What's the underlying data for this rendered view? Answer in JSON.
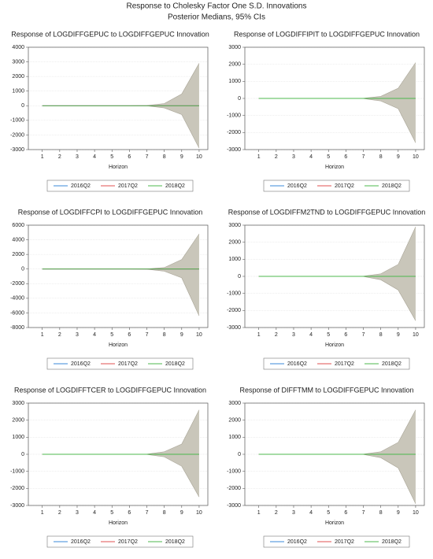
{
  "title": "Response to Cholesky Factor One S.D. Innovations",
  "subtitle": "Posterior Medians, 95% CIs",
  "chart_data": [
    {
      "type": "line",
      "title": "Response of LOGDIFFGEPUC to LOGDIFFGEPUC Innovation",
      "xlabel": "Horizon",
      "categories": [
        "1",
        "2",
        "3",
        "4",
        "5",
        "6",
        "7",
        "8",
        "9",
        "10"
      ],
      "ylim": [
        -3000,
        4000
      ],
      "yticks": [
        -3000,
        -2000,
        -1000,
        0,
        1000,
        2000,
        3000,
        4000
      ],
      "band": {
        "color": "#c9c6ba",
        "upper": [
          0,
          0,
          0,
          0,
          0,
          0,
          10,
          150,
          800,
          2900
        ],
        "lower": [
          0,
          0,
          0,
          0,
          0,
          0,
          -10,
          -150,
          -600,
          -2900
        ]
      },
      "series": [
        {
          "name": "2016Q2",
          "color": "#3b8ad9",
          "values": [
            0,
            0,
            0,
            0,
            0,
            0,
            0,
            0,
            0,
            0
          ]
        },
        {
          "name": "2017Q2",
          "color": "#e05050",
          "values": [
            0,
            0,
            0,
            0,
            0,
            0,
            0,
            0,
            0,
            0
          ]
        },
        {
          "name": "2018Q2",
          "color": "#4cb84c",
          "values": [
            0,
            0,
            0,
            0,
            0,
            0,
            0,
            0,
            0,
            0
          ]
        }
      ]
    },
    {
      "type": "line",
      "title": "Response of LOGDIFFIPIT to LOGDIFFGEPUC Innovation",
      "xlabel": "Horizon",
      "categories": [
        "1",
        "2",
        "3",
        "4",
        "5",
        "6",
        "7",
        "8",
        "9",
        "10"
      ],
      "ylim": [
        -3000,
        3000
      ],
      "yticks": [
        -3000,
        -2000,
        -1000,
        0,
        1000,
        2000,
        3000
      ],
      "band": {
        "color": "#c9c6ba",
        "upper": [
          0,
          0,
          0,
          0,
          0,
          0,
          10,
          120,
          600,
          2100
        ],
        "lower": [
          0,
          0,
          0,
          0,
          0,
          0,
          -10,
          -150,
          -600,
          -2600
        ]
      },
      "series": [
        {
          "name": "2016Q2",
          "color": "#3b8ad9",
          "values": [
            0,
            0,
            0,
            0,
            0,
            0,
            0,
            0,
            0,
            0
          ]
        },
        {
          "name": "2017Q2",
          "color": "#e05050",
          "values": [
            0,
            0,
            0,
            0,
            0,
            0,
            0,
            0,
            0,
            0
          ]
        },
        {
          "name": "2018Q2",
          "color": "#4cb84c",
          "values": [
            0,
            0,
            0,
            0,
            0,
            0,
            0,
            0,
            0,
            0
          ]
        }
      ]
    },
    {
      "type": "line",
      "title": "Response of LOGDIFFCPI to LOGDIFFGEPUC Innovation",
      "xlabel": "Horizon",
      "categories": [
        "1",
        "2",
        "3",
        "4",
        "5",
        "6",
        "7",
        "8",
        "9",
        "10"
      ],
      "ylim": [
        -8000,
        6000
      ],
      "yticks": [
        -8000,
        -6000,
        -4000,
        -2000,
        0,
        2000,
        4000,
        6000
      ],
      "band": {
        "color": "#c9c6ba",
        "upper": [
          0,
          0,
          0,
          0,
          0,
          0,
          20,
          200,
          1300,
          4800
        ],
        "lower": [
          0,
          0,
          0,
          0,
          0,
          0,
          -20,
          -300,
          -1200,
          -6400
        ]
      },
      "series": [
        {
          "name": "2016Q2",
          "color": "#3b8ad9",
          "values": [
            0,
            0,
            0,
            0,
            0,
            0,
            0,
            0,
            0,
            0
          ]
        },
        {
          "name": "2017Q2",
          "color": "#e05050",
          "values": [
            0,
            0,
            0,
            0,
            0,
            0,
            0,
            0,
            0,
            0
          ]
        },
        {
          "name": "2018Q2",
          "color": "#4cb84c",
          "values": [
            0,
            0,
            0,
            0,
            0,
            0,
            0,
            0,
            0,
            0
          ]
        }
      ]
    },
    {
      "type": "line",
      "title": "Response of LOGDIFFM2TND to LOGDIFFGEPUC Innovation",
      "xlabel": "Horizon",
      "categories": [
        "1",
        "2",
        "3",
        "4",
        "5",
        "6",
        "7",
        "8",
        "9",
        "10"
      ],
      "ylim": [
        -3000,
        3000
      ],
      "yticks": [
        -3000,
        -2000,
        -1000,
        0,
        1000,
        2000,
        3000
      ],
      "band": {
        "color": "#c9c6ba",
        "upper": [
          0,
          0,
          0,
          0,
          0,
          0,
          10,
          150,
          700,
          2900
        ],
        "lower": [
          0,
          0,
          0,
          0,
          0,
          0,
          -10,
          -200,
          -800,
          -2600
        ]
      },
      "series": [
        {
          "name": "2016Q2",
          "color": "#3b8ad9",
          "values": [
            0,
            0,
            0,
            0,
            0,
            0,
            0,
            0,
            0,
            0
          ]
        },
        {
          "name": "2017Q2",
          "color": "#e05050",
          "values": [
            0,
            0,
            0,
            0,
            0,
            0,
            0,
            0,
            0,
            0
          ]
        },
        {
          "name": "2018Q2",
          "color": "#4cb84c",
          "values": [
            0,
            0,
            0,
            0,
            0,
            0,
            0,
            0,
            0,
            0
          ]
        }
      ]
    },
    {
      "type": "line",
      "title": "Response of LOGDIFFTCER to LOGDIFFGEPUC Innovation",
      "xlabel": "Horizon",
      "categories": [
        "1",
        "2",
        "3",
        "4",
        "5",
        "6",
        "7",
        "8",
        "9",
        "10"
      ],
      "ylim": [
        -3000,
        3000
      ],
      "yticks": [
        -3000,
        -2000,
        -1000,
        0,
        1000,
        2000,
        3000
      ],
      "band": {
        "color": "#c9c6ba",
        "upper": [
          0,
          0,
          0,
          0,
          0,
          0,
          10,
          150,
          600,
          2600
        ],
        "lower": [
          0,
          0,
          0,
          0,
          0,
          0,
          -10,
          -150,
          -700,
          -2500
        ]
      },
      "series": [
        {
          "name": "2016Q2",
          "color": "#3b8ad9",
          "values": [
            0,
            0,
            0,
            0,
            0,
            0,
            0,
            0,
            0,
            0
          ]
        },
        {
          "name": "2017Q2",
          "color": "#e05050",
          "values": [
            0,
            0,
            0,
            0,
            0,
            0,
            0,
            0,
            0,
            0
          ]
        },
        {
          "name": "2018Q2",
          "color": "#4cb84c",
          "values": [
            0,
            0,
            0,
            0,
            0,
            0,
            0,
            0,
            0,
            0
          ]
        }
      ]
    },
    {
      "type": "line",
      "title": "Response of DIFFTMM to LOGDIFFGEPUC Innovation",
      "xlabel": "Horizon",
      "categories": [
        "1",
        "2",
        "3",
        "4",
        "5",
        "6",
        "7",
        "8",
        "9",
        "10"
      ],
      "ylim": [
        -3000,
        3000
      ],
      "yticks": [
        -3000,
        -2000,
        -1000,
        0,
        1000,
        2000,
        3000
      ],
      "band": {
        "color": "#c9c6ba",
        "upper": [
          0,
          0,
          0,
          0,
          0,
          0,
          10,
          150,
          700,
          2600
        ],
        "lower": [
          0,
          0,
          0,
          0,
          0,
          0,
          -10,
          -200,
          -800,
          -2900
        ]
      },
      "series": [
        {
          "name": "2016Q2",
          "color": "#3b8ad9",
          "values": [
            0,
            0,
            0,
            0,
            0,
            0,
            0,
            0,
            0,
            0
          ]
        },
        {
          "name": "2017Q2",
          "color": "#e05050",
          "values": [
            0,
            0,
            0,
            0,
            0,
            0,
            0,
            0,
            0,
            0
          ]
        },
        {
          "name": "2018Q2",
          "color": "#4cb84c",
          "values": [
            0,
            0,
            0,
            0,
            0,
            0,
            0,
            0,
            0,
            0
          ]
        }
      ]
    }
  ]
}
